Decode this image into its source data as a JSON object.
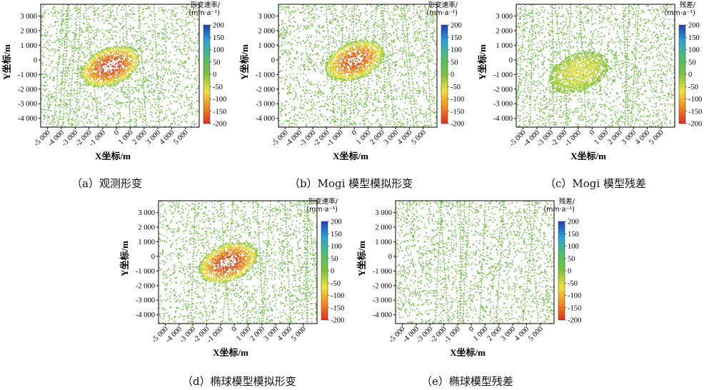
{
  "colors": {
    "background_points": "#6cbf45",
    "colorbar": [
      "#1f3fb8",
      "#2aa6d6",
      "#4fbf6a",
      "#7cc23d",
      "#f1e13a",
      "#f08a1f",
      "#e52b1d"
    ]
  },
  "chart_data": [
    {
      "type": "heatmap",
      "caption": "（a）观测形变",
      "xlabel": "X坐标/m",
      "ylabel": "Y坐标/m",
      "xticks": [
        "-5 000",
        "-4 000",
        "-3 000",
        "-2 000",
        "-1 000",
        "0",
        "1 000",
        "2 000",
        "3 000",
        "4 000",
        "5 000"
      ],
      "yticks": [
        "3 000",
        "2 000",
        "1 000",
        "0",
        "-1 000",
        "-2 000",
        "-3 000",
        "-4 000"
      ],
      "xlim": [
        -5500,
        6000
      ],
      "ylim": [
        -4600,
        3800
      ],
      "colorbar": {
        "title_lines": [
          "形变速率/",
          "(mm·a⁻¹)"
        ],
        "ticks": [
          "200",
          "150",
          "100",
          "50",
          "0",
          "-50",
          "-100",
          "-150",
          "-200"
        ],
        "range": [
          -200,
          200
        ]
      },
      "hotspot": {
        "x": -500,
        "y": -400,
        "peak": -200
      }
    },
    {
      "type": "heatmap",
      "caption": "（b）Mogi 模型模拟形变",
      "xlabel": "X坐标/m",
      "ylabel": "Y坐标/m",
      "xticks": [
        "-5 000",
        "-4 000",
        "-3 000",
        "-2 000",
        "-1 000",
        "0",
        "1 000",
        "2 000",
        "3 000",
        "4 000",
        "5 000"
      ],
      "yticks": [
        "3 000",
        "2 000",
        "1 000",
        "0",
        "-1 000",
        "-2 000",
        "-3 000",
        "-4 000"
      ],
      "xlim": [
        -5500,
        6000
      ],
      "ylim": [
        -4600,
        3800
      ],
      "colorbar": {
        "title_lines": [
          "形变速率/",
          "(mm·a⁻¹)"
        ],
        "ticks": [
          "200",
          "150",
          "100",
          "50",
          "0",
          "-50",
          "-100",
          "-150",
          "-200"
        ],
        "range": [
          -200,
          200
        ]
      },
      "hotspot": {
        "x": 0,
        "y": 0,
        "peak": -180
      }
    },
    {
      "type": "heatmap",
      "caption": "（c）Mogi 模型残差",
      "xlabel": "X坐标/m",
      "ylabel": "Y坐标/m",
      "xticks": [
        "-5 000",
        "-4 000",
        "-3 000",
        "-2 000",
        "-1 000",
        "0",
        "1 000",
        "2 000",
        "3 000",
        "4 000",
        "5 000"
      ],
      "yticks": [
        "3 000",
        "2 000",
        "1 000",
        "0",
        "-1 000",
        "-2 000",
        "-3 000",
        "-4 000"
      ],
      "xlim": [
        -5500,
        6000
      ],
      "ylim": [
        -4600,
        3800
      ],
      "colorbar": {
        "title_lines": [
          "残差/",
          "(mm·a⁻¹)"
        ],
        "ticks": [
          "200",
          "150",
          "100",
          "50",
          "0",
          "-50",
          "-100",
          "-150",
          "-200"
        ],
        "range": [
          -200,
          200
        ]
      },
      "hotspot": {
        "x": -1000,
        "y": -800,
        "peak": -60
      }
    },
    {
      "type": "heatmap",
      "caption": "（d）椭球模型模拟形变",
      "xlabel": "X坐标/m",
      "ylabel": "Y坐标/m",
      "xticks": [
        "-5 000",
        "-4 000",
        "-3 000",
        "-2 000",
        "-1 000",
        "0",
        "1 000",
        "2 000",
        "3 000",
        "4 000",
        "5 000"
      ],
      "yticks": [
        "3 000",
        "2 000",
        "1 000",
        "0",
        "-1 000",
        "-2 000",
        "-3 000",
        "-4 000"
      ],
      "xlim": [
        -5500,
        6000
      ],
      "ylim": [
        -4600,
        3800
      ],
      "colorbar": {
        "title_lines": [
          "形变速率/",
          "(mm·a⁻¹)"
        ],
        "ticks": [
          "200",
          "150",
          "100",
          "50",
          "0",
          "-50",
          "-100",
          "-150",
          "-200"
        ],
        "range": [
          -200,
          200
        ]
      },
      "hotspot": {
        "x": -500,
        "y": -400,
        "peak": -200
      }
    },
    {
      "type": "heatmap",
      "caption": "（e）椭球模型残差",
      "xlabel": "X坐标/m",
      "ylabel": "Y坐标/m",
      "xticks": [
        "-5 000",
        "-4 000",
        "-3 000",
        "-2 000",
        "-1 000",
        "0",
        "1 000",
        "2 000",
        "3 000",
        "4 000",
        "5 000"
      ],
      "yticks": [
        "3 000",
        "2 000",
        "1 000",
        "0",
        "-1 000",
        "-2 000",
        "-3 000",
        "-4 000"
      ],
      "xlim": [
        -5500,
        6000
      ],
      "ylim": [
        -4600,
        3800
      ],
      "colorbar": {
        "title_lines": [
          "残差/",
          "(mm·a⁻¹)"
        ],
        "ticks": [
          "200",
          "150",
          "100",
          "50",
          "0",
          "-50",
          "-100",
          "-150",
          "-200"
        ],
        "range": [
          -200,
          200
        ]
      },
      "hotspot": null
    }
  ]
}
